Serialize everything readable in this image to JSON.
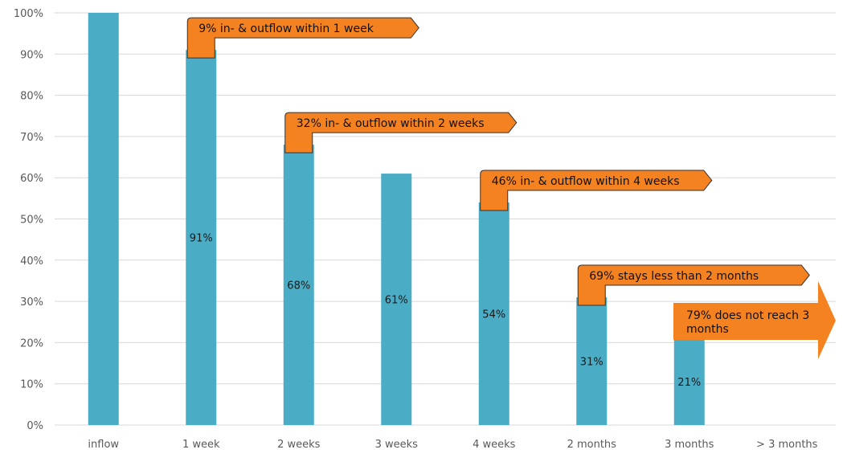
{
  "chart_data": {
    "type": "bar",
    "categories": [
      "inflow",
      "1 week",
      "2 weeks",
      "3 weeks",
      "4 weeks",
      "2 months",
      "3 months",
      "> 3 months"
    ],
    "values": [
      100,
      91,
      68,
      61,
      54,
      31,
      21,
      null
    ],
    "data_labels": [
      "",
      "91%",
      "68%",
      "61%",
      "54%",
      "31%",
      "21%",
      ""
    ],
    "ylim": [
      0,
      100
    ],
    "yticks": [
      "0%",
      "10%",
      "20%",
      "30%",
      "40%",
      "50%",
      "60%",
      "70%",
      "80%",
      "90%",
      "100%"
    ],
    "grid": true,
    "colors": {
      "bar": "#4BACC6",
      "annotation": "#F58220",
      "annotation_border": "#333333",
      "grid": "#D9D9D9"
    },
    "annotations": [
      {
        "category": "1 week",
        "text": "9% in- & outflow within 1 week"
      },
      {
        "category": "2 weeks",
        "text": "32% in- & outflow within 2 weeks"
      },
      {
        "category": "4 weeks",
        "text": "46% in- & outflow within 4 weeks"
      },
      {
        "category": "2 months",
        "text": "69% stays less than 2 months"
      },
      {
        "category": "3 months",
        "text": "79% does not reach 3 months",
        "lines": [
          "79% does not reach 3",
          "months"
        ]
      }
    ]
  }
}
